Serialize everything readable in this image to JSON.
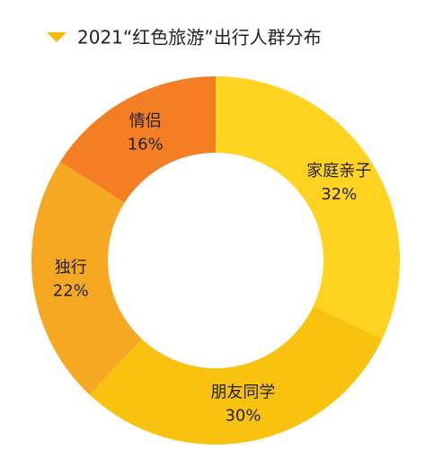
{
  "chart_data": {
    "type": "donut",
    "title": "2021“红色旅游”出行人群分布",
    "categories": [
      "家庭亲子",
      "朋友同学",
      "独行",
      "情侣"
    ],
    "values": [
      32,
      30,
      22,
      16
    ],
    "value_labels": [
      "32%",
      "30%",
      "22%",
      "16%"
    ],
    "colors": [
      "#FFD31F",
      "#F8C20E",
      "#F7A823",
      "#F47E24"
    ]
  }
}
